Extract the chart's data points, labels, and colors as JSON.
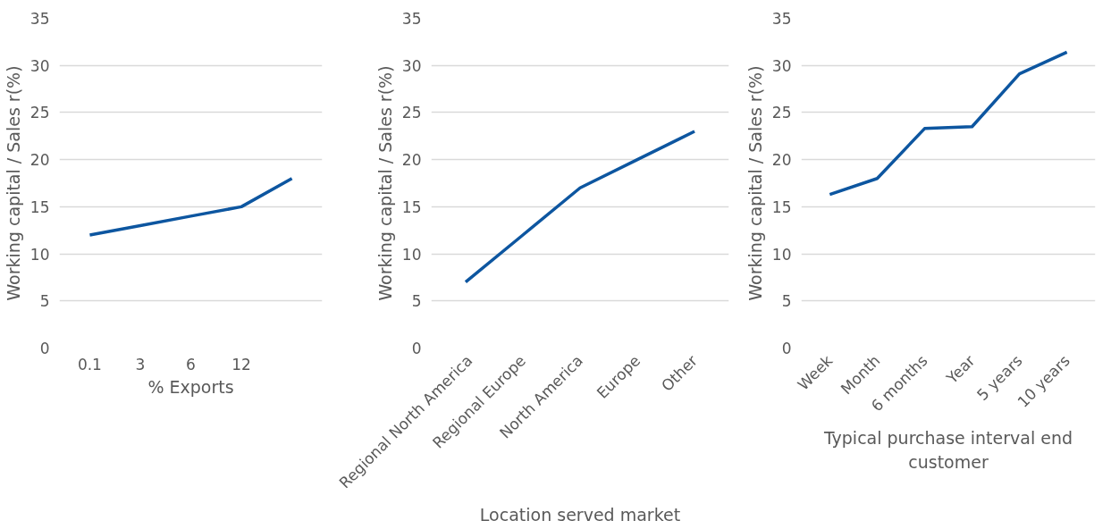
{
  "chart_data": [
    {
      "type": "line",
      "xlabel": "% Exports",
      "ylabel": "Working capital / Sales r(%)",
      "categories": [
        "0.1",
        "3",
        "6",
        "12",
        null
      ],
      "series": [
        {
          "color": "#0d56a0",
          "values": [
            12,
            13,
            14,
            15,
            18
          ]
        }
      ],
      "ylim": [
        0,
        35
      ],
      "yticks": [
        0,
        5,
        10,
        15,
        20,
        25,
        30,
        35
      ],
      "grid": "y"
    },
    {
      "type": "line",
      "xlabel": "Location served market",
      "ylabel": "Working capital / Sales r(%)",
      "categories": [
        "Regional North America",
        "Regional Europe",
        "North America",
        "Europe",
        "Other"
      ],
      "series": [
        {
          "color": "#0d56a0",
          "values": [
            7,
            12,
            17,
            20,
            23
          ]
        }
      ],
      "ylim": [
        0,
        35
      ],
      "yticks": [
        0,
        5,
        10,
        15,
        20,
        25,
        30,
        35
      ],
      "grid": "y"
    },
    {
      "type": "line",
      "xlabel": "Typical purchase interval end customer",
      "ylabel": "Working capital / Sales r(%)",
      "categories": [
        "Week",
        "Month",
        "6 months",
        "Year",
        "5 years",
        "10 years"
      ],
      "series": [
        {
          "color": "#0d56a0",
          "values": [
            16.3,
            18,
            23.3,
            23.5,
            29.1,
            31.4
          ]
        }
      ],
      "ylim": [
        0,
        35
      ],
      "yticks": [
        0,
        5,
        10,
        15,
        20,
        25,
        30,
        35
      ],
      "grid": "y"
    }
  ]
}
